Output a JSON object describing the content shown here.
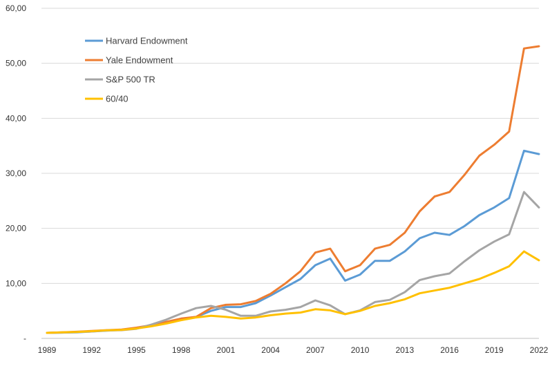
{
  "chart_data": {
    "type": "line",
    "title": "",
    "xlabel": "",
    "ylabel": "",
    "ylim": [
      0,
      60
    ],
    "y_ticks": [
      0,
      10,
      20,
      30,
      40,
      50,
      60
    ],
    "y_tick_labels": [
      "-",
      "10,00",
      "20,00",
      "30,00",
      "40,00",
      "50,00",
      "60,00"
    ],
    "x": [
      1989,
      1990,
      1991,
      1992,
      1993,
      1994,
      1995,
      1996,
      1997,
      1998,
      1999,
      2000,
      2001,
      2002,
      2003,
      2004,
      2005,
      2006,
      2007,
      2008,
      2009,
      2010,
      2011,
      2012,
      2013,
      2014,
      2015,
      2016,
      2017,
      2018,
      2019,
      2020,
      2021,
      2022
    ],
    "x_ticks": [
      1989,
      1992,
      1995,
      1998,
      2001,
      2004,
      2007,
      2010,
      2013,
      2016,
      2019,
      2022
    ],
    "x_tick_labels": [
      "1989",
      "1992",
      "1995",
      "1998",
      "2001",
      "2004",
      "2007",
      "2010",
      "2013",
      "2016",
      "2019",
      "2022"
    ],
    "grid": "horizontal",
    "legend_position": "top-left",
    "series": [
      {
        "name": "Harvard Endowment",
        "color": "#5b9bd5",
        "values": [
          1.0,
          1.05,
          1.1,
          1.25,
          1.4,
          1.55,
          1.85,
          2.3,
          2.9,
          3.5,
          3.9,
          5.0,
          5.7,
          5.7,
          6.4,
          7.8,
          9.3,
          10.8,
          13.3,
          14.5,
          10.5,
          11.6,
          14.1,
          14.1,
          15.8,
          18.2,
          19.2,
          18.8,
          20.4,
          22.4,
          23.8,
          25.5,
          34.1,
          33.5
        ]
      },
      {
        "name": "Yale Endowment",
        "color": "#ed7d31",
        "values": [
          1.0,
          1.1,
          1.2,
          1.35,
          1.5,
          1.6,
          1.95,
          2.4,
          3.0,
          3.6,
          3.9,
          5.5,
          6.1,
          6.2,
          6.8,
          8.1,
          10.0,
          12.2,
          15.6,
          16.3,
          12.2,
          13.3,
          16.3,
          17.0,
          19.2,
          23.1,
          25.8,
          26.6,
          29.7,
          33.2,
          35.2,
          37.6,
          52.7,
          53.1
        ]
      },
      {
        "name": "S&P 500 TR",
        "color": "#a5a5a5",
        "values": [
          1.0,
          1.05,
          1.15,
          1.25,
          1.45,
          1.5,
          1.75,
          2.5,
          3.4,
          4.5,
          5.5,
          5.9,
          5.2,
          4.1,
          4.1,
          4.9,
          5.2,
          5.7,
          6.9,
          6.0,
          4.4,
          5.1,
          6.6,
          7.0,
          8.4,
          10.6,
          11.3,
          11.8,
          14.0,
          16.0,
          17.6,
          18.9,
          26.6,
          23.8
        ]
      },
      {
        "name": "60/40",
        "color": "#ffc000",
        "values": [
          1.0,
          1.1,
          1.15,
          1.3,
          1.45,
          1.55,
          1.8,
          2.2,
          2.7,
          3.3,
          3.8,
          4.1,
          3.9,
          3.6,
          3.8,
          4.2,
          4.5,
          4.7,
          5.3,
          5.1,
          4.4,
          5.0,
          5.9,
          6.4,
          7.1,
          8.2,
          8.7,
          9.2,
          10.0,
          10.8,
          11.9,
          13.1,
          15.8,
          14.2
        ]
      }
    ]
  }
}
